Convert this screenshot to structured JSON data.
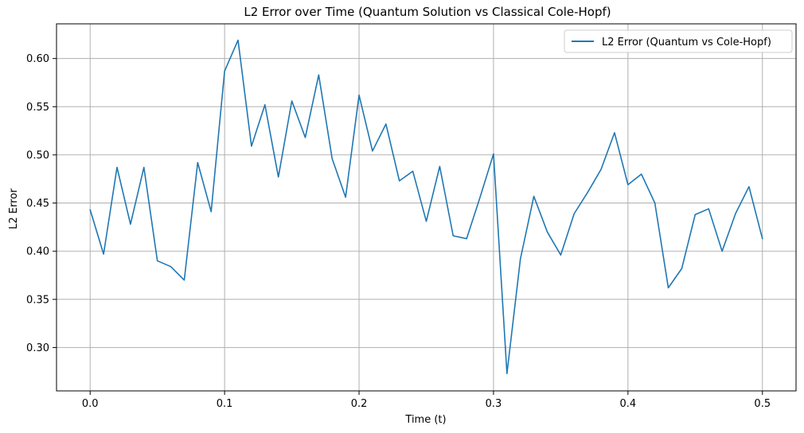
{
  "chart_data": {
    "type": "line",
    "title": "L2 Error over Time (Quantum Solution vs Classical Cole-Hopf)",
    "xlabel": "Time (t)",
    "ylabel": "L2 Error",
    "xlim": [
      -0.025,
      0.525
    ],
    "ylim": [
      0.255,
      0.636
    ],
    "xticks": [
      0.0,
      0.1,
      0.2,
      0.3,
      0.4,
      0.5
    ],
    "xtick_labels": [
      "0.0",
      "0.1",
      "0.2",
      "0.3",
      "0.4",
      "0.5"
    ],
    "yticks": [
      0.3,
      0.35,
      0.4,
      0.45,
      0.5,
      0.55,
      0.6
    ],
    "ytick_labels": [
      "0.30",
      "0.35",
      "0.40",
      "0.45",
      "0.50",
      "0.55",
      "0.60"
    ],
    "grid": true,
    "legend_position": "top-right",
    "series": [
      {
        "name": "L2 Error (Quantum vs Cole-Hopf)",
        "color": "#1f77b4",
        "x": [
          0.0,
          0.01,
          0.02,
          0.03,
          0.04,
          0.05,
          0.06,
          0.07,
          0.08,
          0.09,
          0.1,
          0.11,
          0.12,
          0.13,
          0.14,
          0.15,
          0.16,
          0.17,
          0.18,
          0.19,
          0.2,
          0.21,
          0.22,
          0.23,
          0.24,
          0.25,
          0.26,
          0.27,
          0.28,
          0.29,
          0.3,
          0.31,
          0.32,
          0.33,
          0.34,
          0.35,
          0.36,
          0.37,
          0.38,
          0.39,
          0.4,
          0.41,
          0.42,
          0.43,
          0.44,
          0.45,
          0.46,
          0.47,
          0.48,
          0.49,
          0.5
        ],
        "y": [
          0.443,
          0.397,
          0.487,
          0.428,
          0.487,
          0.39,
          0.384,
          0.37,
          0.492,
          0.441,
          0.587,
          0.619,
          0.509,
          0.552,
          0.477,
          0.556,
          0.518,
          0.583,
          0.496,
          0.456,
          0.562,
          0.504,
          0.532,
          0.473,
          0.483,
          0.431,
          0.488,
          0.416,
          0.413,
          0.456,
          0.501,
          0.273,
          0.392,
          0.457,
          0.42,
          0.396,
          0.439,
          0.461,
          0.485,
          0.523,
          0.469,
          0.48,
          0.45,
          0.362,
          0.382,
          0.438,
          0.444,
          0.4,
          0.439,
          0.467,
          0.413
        ]
      }
    ]
  }
}
